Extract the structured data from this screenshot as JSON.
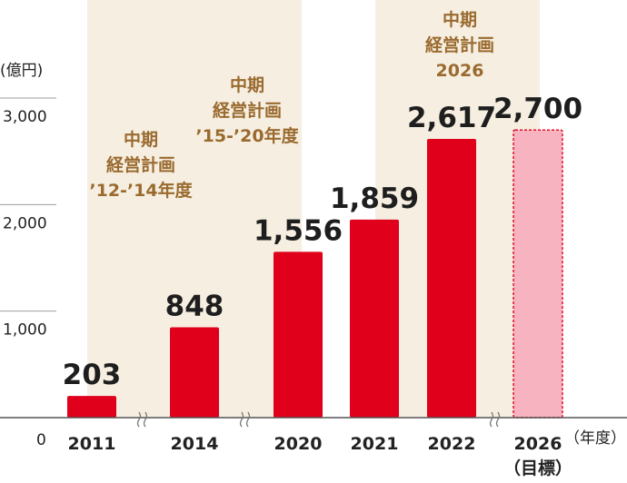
{
  "chart_data": {
    "type": "bar",
    "categories": [
      "2011",
      "2014",
      "2020",
      "2021",
      "2022",
      "2026"
    ],
    "category_notes": {
      "2026": "（目標）"
    },
    "values": [
      203,
      848,
      1556,
      1859,
      2617,
      2700
    ],
    "value_labels": [
      "203",
      "848",
      "1,556",
      "1,859",
      "2,617",
      "2,700"
    ],
    "target_index": 5,
    "ylabel": "(億円)",
    "xunit": "（年度）",
    "ylim": [
      0,
      3200
    ],
    "yticks": [
      0,
      1000,
      2000,
      3000
    ],
    "ytick_labels": [
      "0",
      "1,000",
      "2,000",
      "3,000"
    ],
    "grid": true,
    "axis_breaks_after": [
      0,
      1,
      4
    ],
    "plan_periods": [
      {
        "lines": [
          "中期",
          "経営計画",
          "’12-’14年度"
        ],
        "span": [
          0,
          1
        ]
      },
      {
        "lines": [
          "中期",
          "経営計画",
          "’15-’20年度"
        ],
        "span": [
          1,
          2
        ]
      },
      {
        "lines": [
          "中期",
          "経営計画",
          "2026"
        ],
        "span": [
          4,
          5
        ]
      }
    ],
    "colors": {
      "bar": "#e0001b",
      "target_bar": "#f7b3c0",
      "target_border": "#e0001b",
      "band": "#f6efe1",
      "plan_text": "#9a6a2f"
    }
  }
}
